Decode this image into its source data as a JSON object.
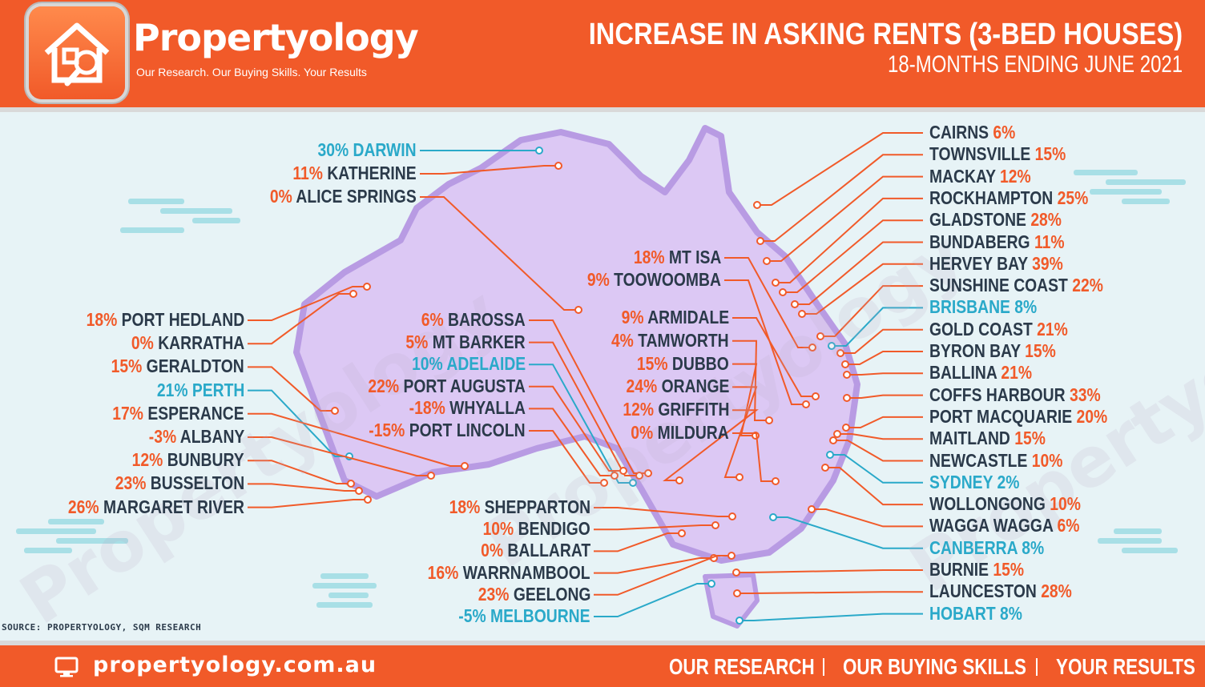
{
  "brand": {
    "name": "Propertyology",
    "tagline": "Our Research. Our Buying Skills. Your Results"
  },
  "title": "INCREASE IN ASKING RENTS (3-BED HOUSES)",
  "subtitle": "18-MONTHS ENDING JUNE 2021",
  "watermark": "Propertyology",
  "source": "SOURCE: PROPERTYOLOGY, SQM RESEARCH",
  "footer": {
    "website": "propertyology.com.au",
    "links": [
      "OUR RESEARCH",
      "OUR BUYING SKILLS",
      "YOUR RESULTS"
    ]
  },
  "colors": {
    "accent": "#f15a29",
    "capital": "#2aa9c9",
    "text": "#2b3a4a",
    "map": "#dcc8f4",
    "map_edge": "#b89be3"
  },
  "icons": [
    "house-magnifier-logo-icon",
    "monitor-icon"
  ],
  "regions": {
    "top_left": [
      {
        "pct": "30%",
        "name": "DARWIN",
        "capital": true
      },
      {
        "pct": "11%",
        "name": "KATHERINE",
        "capital": false
      },
      {
        "pct": "0%",
        "name": "ALICE SPRINGS",
        "capital": false
      }
    ],
    "west": [
      {
        "pct": "18%",
        "name": "PORT HEDLAND",
        "capital": false
      },
      {
        "pct": "0%",
        "name": "KARRATHA",
        "capital": false
      },
      {
        "pct": "15%",
        "name": "GERALDTON",
        "capital": false
      },
      {
        "pct": "21%",
        "name": "PERTH",
        "capital": true
      },
      {
        "pct": "17%",
        "name": "ESPERANCE",
        "capital": false
      },
      {
        "pct": "-3%",
        "name": "ALBANY",
        "capital": false
      },
      {
        "pct": "12%",
        "name": "BUNBURY",
        "capital": false
      },
      {
        "pct": "23%",
        "name": "BUSSELTON",
        "capital": false
      },
      {
        "pct": "26%",
        "name": "MARGARET RIVER",
        "capital": false
      }
    ],
    "south_australia": [
      {
        "pct": "6%",
        "name": "BAROSSA",
        "capital": false
      },
      {
        "pct": "5%",
        "name": "MT BARKER",
        "capital": false
      },
      {
        "pct": "10%",
        "name": "ADELAIDE",
        "capital": true
      },
      {
        "pct": "22%",
        "name": "PORT AUGUSTA",
        "capital": false
      },
      {
        "pct": "-18%",
        "name": "WHYALLA",
        "capital": false
      },
      {
        "pct": "-15%",
        "name": "PORT LINCOLN",
        "capital": false
      }
    ],
    "queensland_inland": [
      {
        "pct": "18%",
        "name": "MT ISA",
        "capital": false
      },
      {
        "pct": "9%",
        "name": "TOOWOOMBA",
        "capital": false
      }
    ],
    "nsw_inland": [
      {
        "pct": "9%",
        "name": "ARMIDALE",
        "capital": false
      },
      {
        "pct": "4%",
        "name": "TAMWORTH",
        "capital": false
      },
      {
        "pct": "15%",
        "name": "DUBBO",
        "capital": false
      },
      {
        "pct": "24%",
        "name": "ORANGE",
        "capital": false
      },
      {
        "pct": "12%",
        "name": "GRIFFITH",
        "capital": false
      },
      {
        "pct": "0%",
        "name": "MILDURA",
        "capital": false
      }
    ],
    "victoria": [
      {
        "pct": "18%",
        "name": "SHEPPARTON",
        "capital": false
      },
      {
        "pct": "10%",
        "name": "BENDIGO",
        "capital": false
      },
      {
        "pct": "0%",
        "name": "BALLARAT",
        "capital": false
      },
      {
        "pct": "16%",
        "name": "WARRNAMBOOL",
        "capital": false
      },
      {
        "pct": "23%",
        "name": "GEELONG",
        "capital": false
      },
      {
        "pct": "-5%",
        "name": "MELBOURNE",
        "capital": true
      }
    ],
    "east": [
      {
        "pct": "6%",
        "name": "CAIRNS",
        "capital": false
      },
      {
        "pct": "15%",
        "name": "TOWNSVILLE",
        "capital": false
      },
      {
        "pct": "12%",
        "name": "MACKAY",
        "capital": false
      },
      {
        "pct": "25%",
        "name": "ROCKHAMPTON",
        "capital": false
      },
      {
        "pct": "28%",
        "name": "GLADSTONE",
        "capital": false
      },
      {
        "pct": "11%",
        "name": "BUNDABERG",
        "capital": false
      },
      {
        "pct": "39%",
        "name": "HERVEY BAY",
        "capital": false
      },
      {
        "pct": "22%",
        "name": "SUNSHINE COAST",
        "capital": false
      },
      {
        "pct": "8%",
        "name": "BRISBANE",
        "capital": true
      },
      {
        "pct": "21%",
        "name": "GOLD COAST",
        "capital": false
      },
      {
        "pct": "15%",
        "name": "BYRON BAY",
        "capital": false
      },
      {
        "pct": "21%",
        "name": "BALLINA",
        "capital": false
      },
      {
        "pct": "33%",
        "name": "COFFS HARBOUR",
        "capital": false
      },
      {
        "pct": "20%",
        "name": "PORT MACQUARIE",
        "capital": false
      },
      {
        "pct": "15%",
        "name": "MAITLAND",
        "capital": false
      },
      {
        "pct": "10%",
        "name": "NEWCASTLE",
        "capital": false
      },
      {
        "pct": "2%",
        "name": "SYDNEY",
        "capital": true
      },
      {
        "pct": "10%",
        "name": "WOLLONGONG",
        "capital": false
      },
      {
        "pct": "6%",
        "name": "WAGGA WAGGA",
        "capital": false
      },
      {
        "pct": "8%",
        "name": "CANBERRA",
        "capital": true
      },
      {
        "pct": "15%",
        "name": "BURNIE",
        "capital": false
      },
      {
        "pct": "28%",
        "name": "LAUNCESTON",
        "capital": false
      },
      {
        "pct": "8%",
        "name": "HOBART",
        "capital": true
      }
    ]
  }
}
